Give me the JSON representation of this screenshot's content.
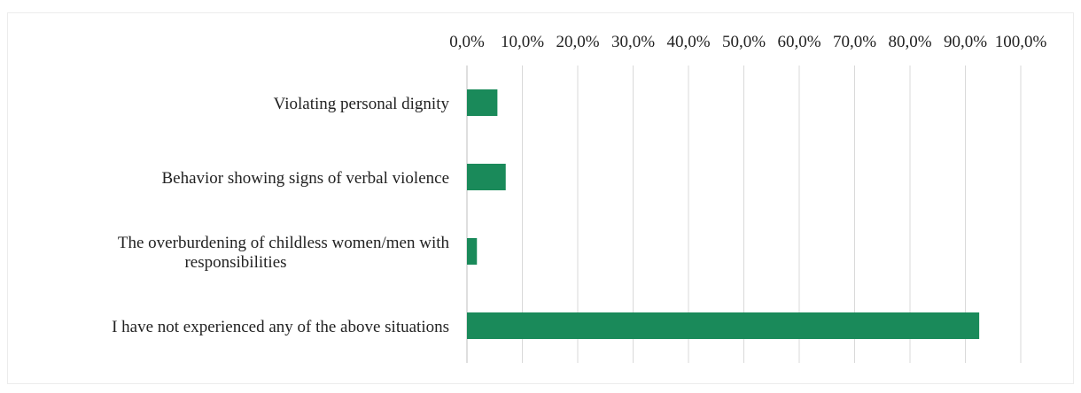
{
  "chart_data": {
    "type": "bar",
    "orientation": "horizontal",
    "categories": [
      [
        "Violating personal dignity"
      ],
      [
        "Behavior showing signs of verbal violence"
      ],
      [
        "The overburdening of childless women/men with",
        "responsibilities"
      ],
      [
        "I have not experienced any of the above situations"
      ]
    ],
    "values": [
      5.5,
      7.0,
      1.8,
      92.5
    ],
    "xlim": [
      0,
      100
    ],
    "ticks": [
      0,
      10,
      20,
      30,
      40,
      50,
      60,
      70,
      80,
      90,
      100
    ],
    "tick_labels": [
      "0,0%",
      "10,0%",
      "20,0%",
      "30,0%",
      "40,0%",
      "50,0%",
      "60,0%",
      "70,0%",
      "80,0%",
      "90,0%",
      "100,0%"
    ],
    "axis_position": "top",
    "grid": true,
    "bar_color": "#1a8a5a",
    "title": "",
    "xlabel": "",
    "ylabel": ""
  }
}
